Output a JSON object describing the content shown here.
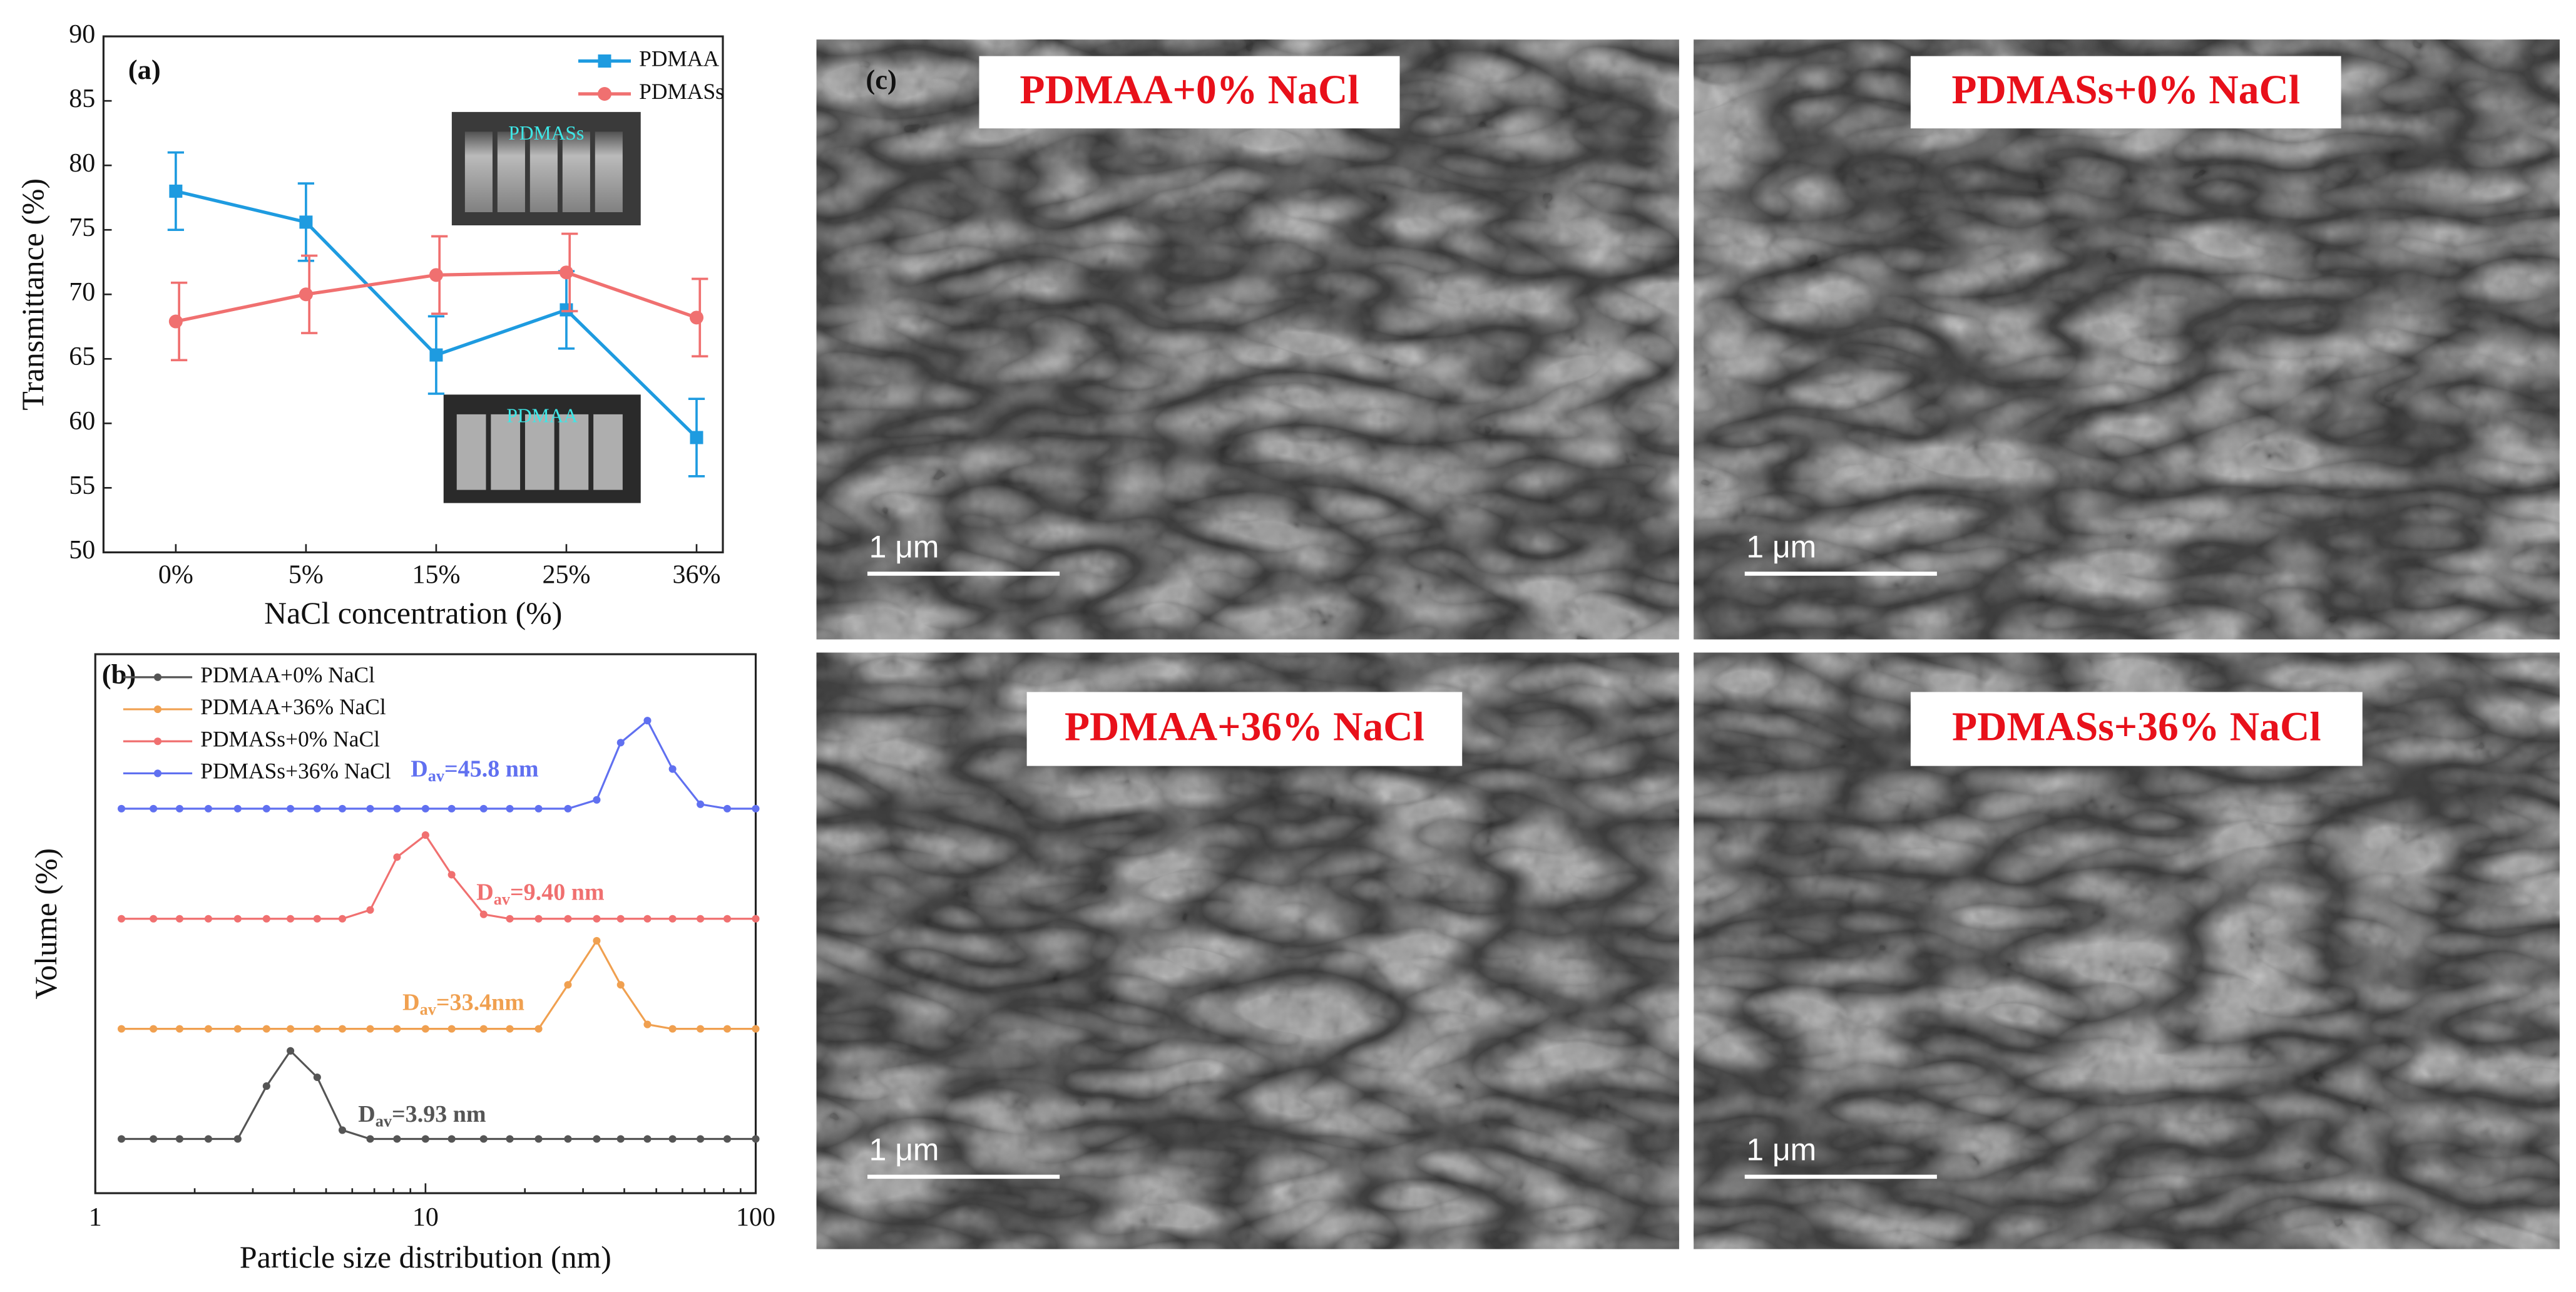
{
  "chart_data": [
    {
      "type": "line",
      "panel_label": "(a)",
      "x_label": "NaCl concentration (%)",
      "y_label": "Transmittance (%)",
      "categories": [
        "0%",
        "5%",
        "15%",
        "25%",
        "36%"
      ],
      "ylim": [
        50,
        90
      ],
      "yticks": [
        50,
        55,
        60,
        65,
        70,
        75,
        80,
        85,
        90
      ],
      "legend": "upper right",
      "series": [
        {
          "name": "PDMAA",
          "color": "#1e9be0",
          "marker": "square",
          "values": [
            78.0,
            75.6,
            65.3,
            68.8,
            58.9
          ],
          "errors": [
            3.0,
            3.0,
            3.0,
            3.0,
            3.0
          ]
        },
        {
          "name": "PDMASs",
          "color": "#f07070",
          "marker": "circle",
          "values": [
            67.9,
            70.0,
            71.5,
            71.7,
            68.2
          ],
          "errors": [
            3.0,
            3.0,
            3.0,
            3.0,
            3.0
          ]
        }
      ],
      "insets": [
        "PDMASs",
        "PDMAA"
      ]
    },
    {
      "type": "line",
      "panel_label": "(b)",
      "x_label": "Particle size distribution (nm)",
      "y_label": "Volume (%)",
      "xscale": "log",
      "xlim": [
        1,
        100
      ],
      "xticks": [
        1,
        10,
        100
      ],
      "ylim": [
        0,
        25
      ],
      "x": [
        1.2,
        1.5,
        1.8,
        2.2,
        2.7,
        3.3,
        3.9,
        4.7,
        5.6,
        6.8,
        8.2,
        10,
        12,
        15,
        18,
        22,
        27,
        33,
        39,
        47,
        56,
        68,
        82,
        100
      ],
      "series": [
        {
          "name": "PDMAA+0% NaCl",
          "color": "#555555",
          "values": [
            0,
            0,
            0,
            0,
            0,
            12,
            20,
            14,
            2,
            0,
            0,
            0,
            0,
            0,
            0,
            0,
            0,
            0,
            0,
            0,
            0,
            0,
            0,
            0
          ],
          "annotation": {
            "main": "D",
            "sub": "av",
            "rest": "=3.93 nm"
          }
        },
        {
          "name": "PDMAA+36% NaCl",
          "color": "#f0a050",
          "values": [
            0,
            0,
            0,
            0,
            0,
            0,
            0,
            0,
            0,
            0,
            0,
            0,
            0,
            0,
            0,
            0,
            10,
            20,
            10,
            1,
            0,
            0,
            0,
            0
          ],
          "annotation": {
            "main": "D",
            "sub": "av",
            "rest": "=33.4nm"
          }
        },
        {
          "name": "PDMASs+0% NaCl",
          "color": "#f07070",
          "values": [
            0,
            0,
            0,
            0,
            0,
            0,
            0,
            0,
            0,
            2,
            14,
            19,
            10,
            1,
            0,
            0,
            0,
            0,
            0,
            0,
            0,
            0,
            0,
            0
          ],
          "annotation": {
            "main": "D",
            "sub": "av",
            "rest": "=9.40 nm"
          }
        },
        {
          "name": "PDMASs+36% NaCl",
          "color": "#6070f0",
          "values": [
            0,
            0,
            0,
            0,
            0,
            0,
            0,
            0,
            0,
            0,
            0,
            0,
            0,
            0,
            0,
            0,
            0,
            2,
            15,
            20,
            9,
            1,
            0,
            0
          ],
          "annotation": {
            "main": "D",
            "sub": "av",
            "rest": "=45.8 nm"
          }
        }
      ]
    }
  ],
  "panel_c": {
    "label": "(c)",
    "images": [
      {
        "title": "PDMAA+0% NaCl",
        "scale_bar": "1 μm"
      },
      {
        "title": "PDMASs+0% NaCl",
        "scale_bar": "1 μm"
      },
      {
        "title": "PDMAA+36% NaCl",
        "scale_bar": "1 μm"
      },
      {
        "title": "PDMASs+36% NaCl",
        "scale_bar": "1 μm"
      }
    ]
  }
}
